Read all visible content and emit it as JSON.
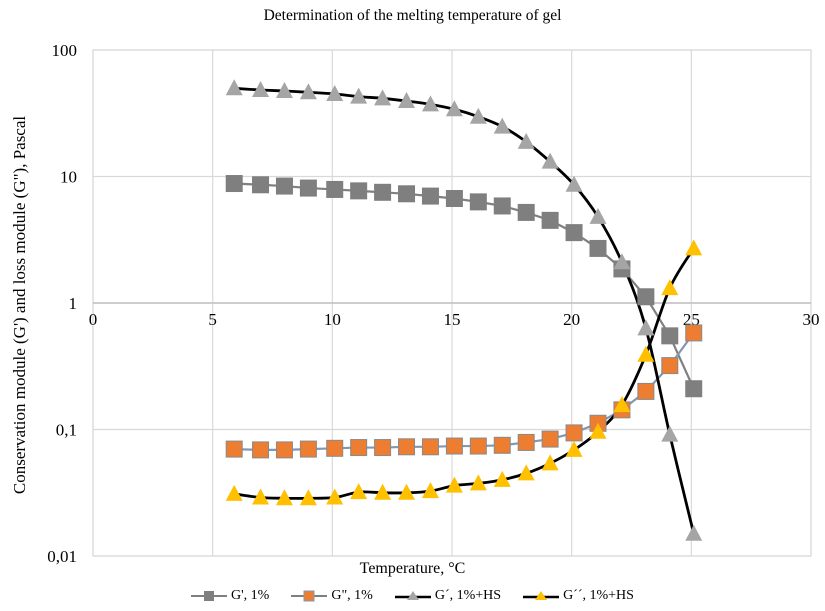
{
  "chart_data": {
    "type": "line",
    "title": "Determination of the melting temperature of gel",
    "xlabel": "Temperature, °C",
    "ylabel": "Conservation module (G') and loss module (G\"), Pascal",
    "xlim": [
      0,
      30
    ],
    "ylim": [
      0.01,
      100
    ],
    "yscale": "log",
    "grid": true,
    "legend_position": "bottom",
    "x_ticks": [
      "0",
      "5",
      "10",
      "15",
      "20",
      "25",
      "30"
    ],
    "x_tick_values": [
      0,
      5,
      10,
      15,
      20,
      25,
      30
    ],
    "y_ticks": [
      "0,01",
      "0,1",
      "1",
      "10",
      "100"
    ],
    "y_tick_values": [
      0.01,
      0.1,
      1,
      10,
      100
    ],
    "x": [
      5.9,
      7.0,
      8.0,
      9.0,
      10.1,
      11.1,
      12.1,
      13.1,
      14.1,
      15.1,
      16.1,
      17.1,
      18.1,
      19.1,
      20.1,
      21.1,
      22.1,
      23.1,
      24.1,
      25.1
    ],
    "series": [
      {
        "name": "G', 1%",
        "marker": "square",
        "color": "#7f7f7f",
        "line_color": "#7f7f7f",
        "smooth": false,
        "values": [
          8.8,
          8.6,
          8.4,
          8.1,
          7.9,
          7.7,
          7.5,
          7.3,
          7.0,
          6.7,
          6.3,
          5.85,
          5.2,
          4.5,
          3.6,
          2.7,
          1.86,
          1.12,
          0.55,
          0.21
        ]
      },
      {
        "name": "G\", 1%",
        "marker": "square",
        "color": "#ed7d31",
        "line_color": "#8497b0",
        "smooth": false,
        "values": [
          0.07,
          0.069,
          0.069,
          0.07,
          0.071,
          0.072,
          0.072,
          0.073,
          0.073,
          0.074,
          0.074,
          0.075,
          0.079,
          0.084,
          0.094,
          0.112,
          0.143,
          0.2,
          0.32,
          0.58
        ]
      },
      {
        "name": "G´, 1%+HS",
        "marker": "triangle",
        "color": "#a5a5a5",
        "line_color": "#000000",
        "smooth": true,
        "values": [
          49.8,
          48.3,
          47.4,
          46.3,
          44.9,
          42.8,
          41.5,
          39.5,
          37.2,
          34.0,
          29.7,
          24.8,
          18.8,
          13.1,
          8.6,
          4.8,
          2.1,
          0.63,
          0.091,
          0.015
        ]
      },
      {
        "name": "G´´, 1%+HS",
        "marker": "triangle",
        "color": "#ffc000",
        "line_color": "#000000",
        "smooth": true,
        "values": [
          0.031,
          0.029,
          0.0286,
          0.0286,
          0.029,
          0.032,
          0.0316,
          0.0316,
          0.0326,
          0.036,
          0.0375,
          0.04,
          0.045,
          0.054,
          0.069,
          0.096,
          0.156,
          0.39,
          1.31,
          2.7
        ]
      }
    ]
  }
}
